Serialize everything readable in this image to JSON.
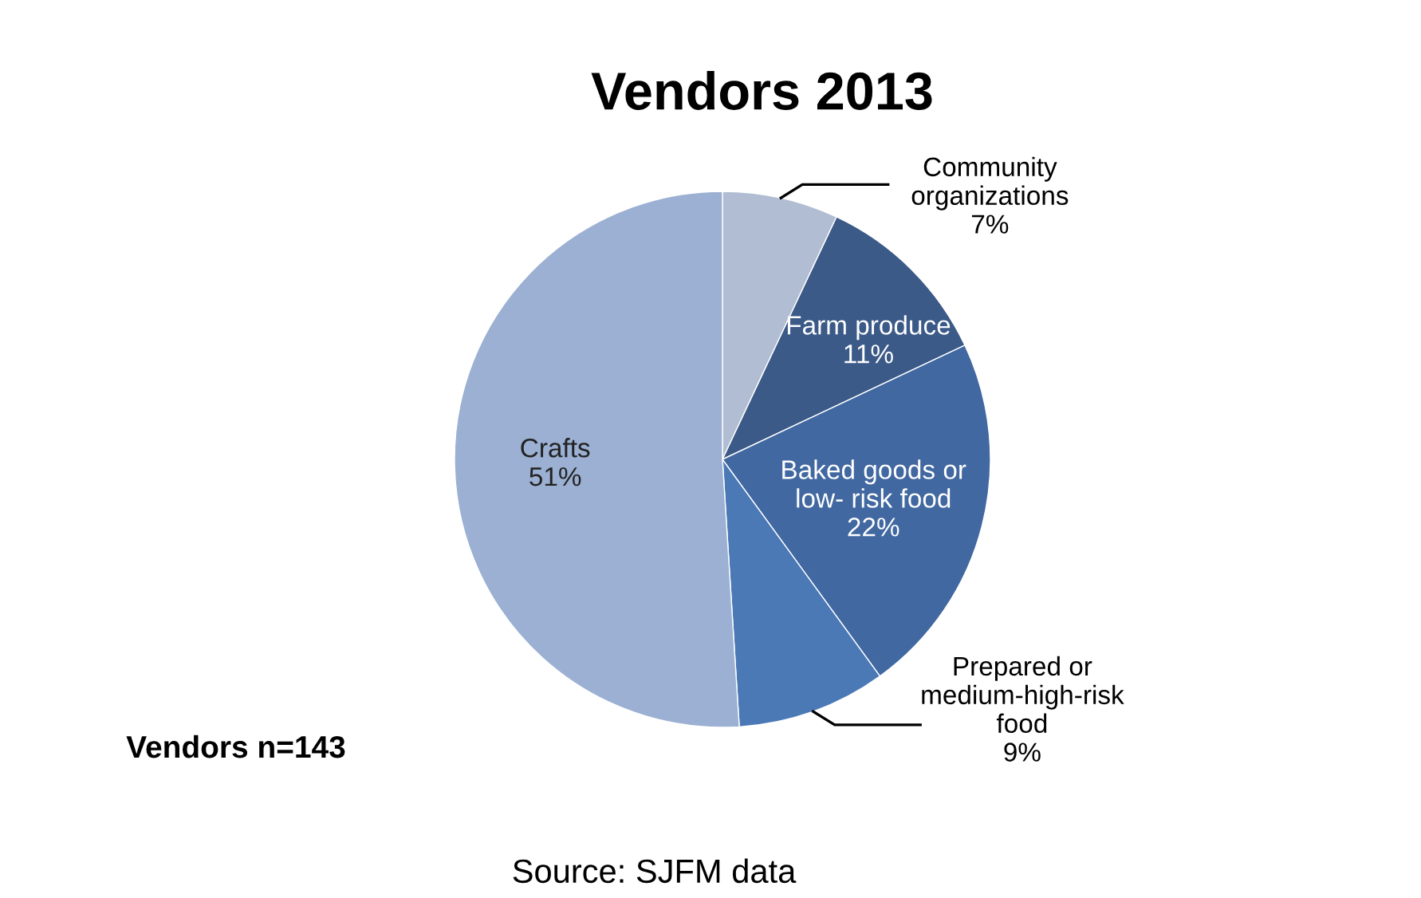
{
  "chart_data": {
    "type": "pie",
    "title": "Vendors 2013",
    "categories": [
      "Community\norganizations",
      "Farm produce",
      "Baked goods or\nlow- risk food",
      "Prepared or\nmedium-high-risk\nfood",
      "Crafts"
    ],
    "values": [
      7,
      11,
      22,
      9,
      51
    ],
    "value_labels": [
      "7%",
      "11%",
      "22%",
      "9%",
      "51%"
    ],
    "colors": [
      "#b1bdd2",
      "#3b5a88",
      "#4168a1",
      "#4a79b6",
      "#9bb0d2"
    ],
    "legend": false,
    "annotations": [
      "Vendors n=143",
      "Source: SJFM data"
    ]
  }
}
